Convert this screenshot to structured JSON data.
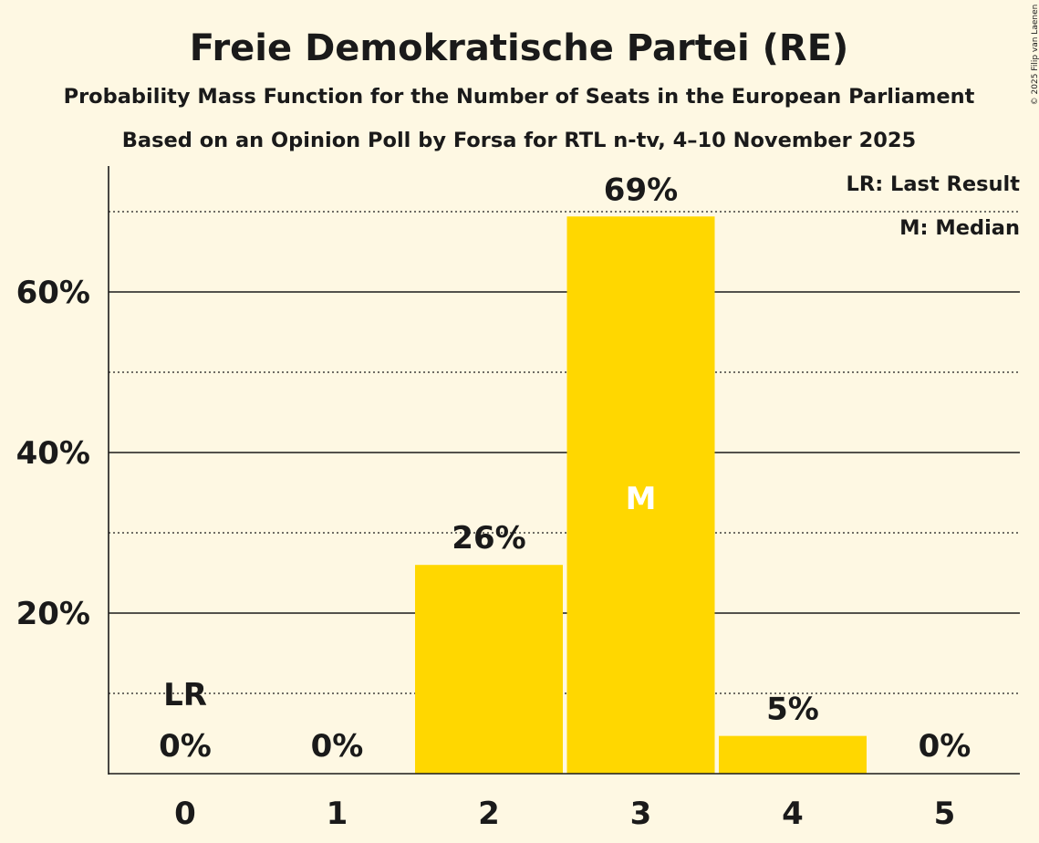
{
  "chart_data": {
    "type": "bar",
    "title": "Freie Demokratische Partei (RE)",
    "subtitle": "Probability Mass Function for the Number of Seats in the European Parliament",
    "subtitle2": "Based on an Opinion Poll by Forsa for RTL n-tv, 4–10 November 2025",
    "copyright": "© 2025 Filip van Laenen",
    "categories": [
      "0",
      "1",
      "2",
      "3",
      "4",
      "5"
    ],
    "values": [
      0,
      0,
      26,
      69.4,
      4.7,
      0
    ],
    "value_labels": [
      "0%",
      "0%",
      "26%",
      "69%",
      "5%",
      "0%"
    ],
    "ylim": [
      0,
      75
    ],
    "ytick_values": [
      20,
      40,
      60
    ],
    "ytick_labels": [
      "20%",
      "40%",
      "60%"
    ],
    "minor_gridlines": [
      10,
      30,
      50,
      70
    ],
    "last_result_index": 0,
    "last_result_label": "LR",
    "median_index": 3,
    "median_label": "M",
    "legend": [
      "LR: Last Result",
      "M: Median"
    ],
    "legend_position": "top-right",
    "colors": {
      "bar": "#ffd700",
      "background": "#fef8e3",
      "text": "#1a1a1a",
      "median_text": "#ffffff"
    }
  }
}
